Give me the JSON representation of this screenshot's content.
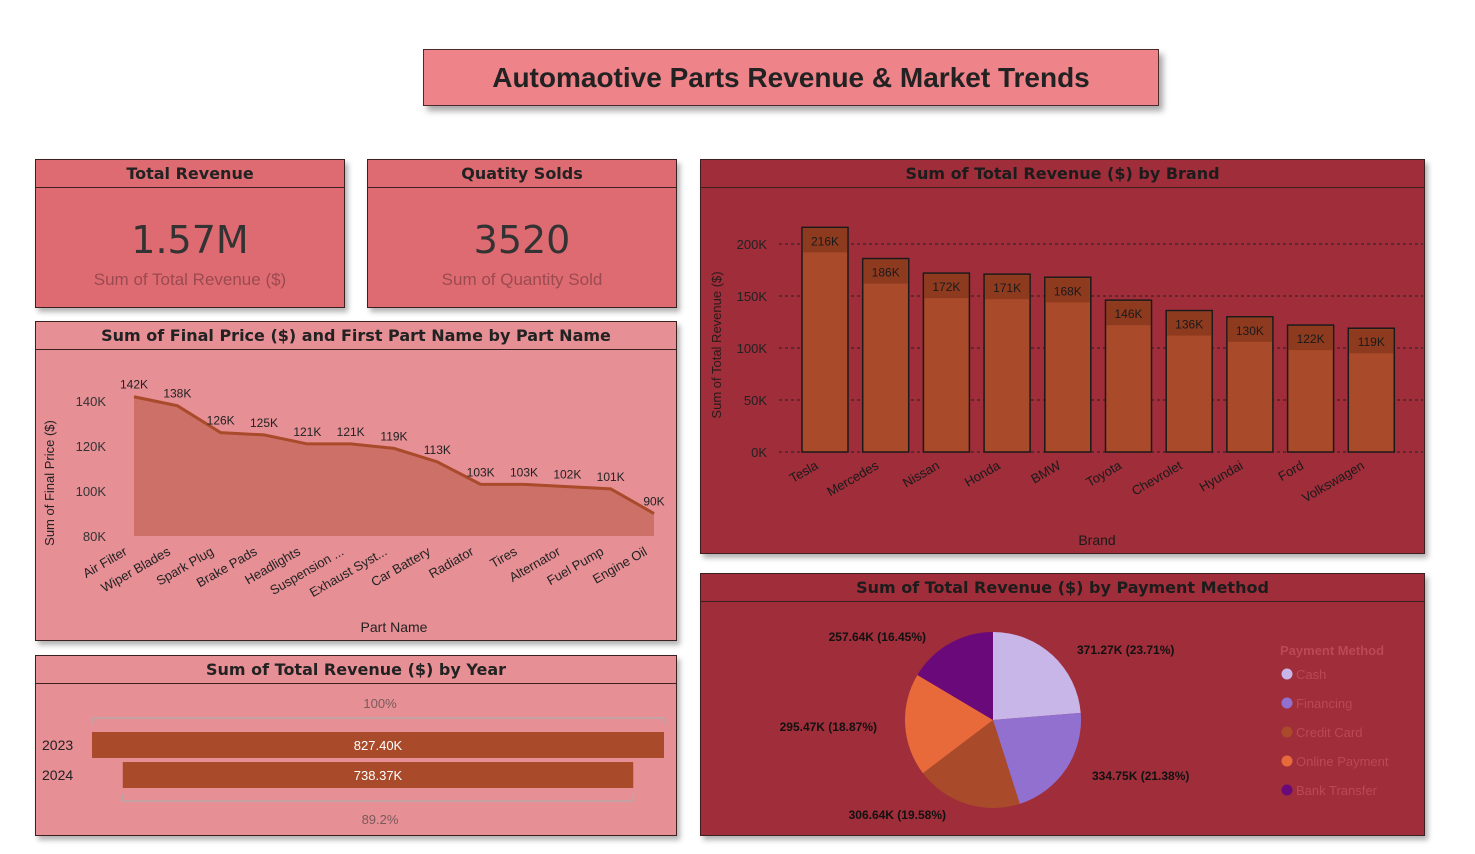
{
  "dashboard": {
    "title": "Automaotive Parts Revenue & Market Trends"
  },
  "kpis": {
    "revenue": {
      "title": "Total Revenue",
      "value": "1.57M",
      "label": "Sum of Total Revenue ($)"
    },
    "quantity": {
      "title": "Quatity Solds",
      "value": "3520",
      "label": "Sum of Quantity Sold"
    }
  },
  "colors": {
    "bar": "#a94a2a",
    "bar_top": "#8e3a1f",
    "area_fill": "#cc7068",
    "area_line": "#a94a2a",
    "pie": [
      "#c9b6e9",
      "#9170d0",
      "#a94a2a",
      "#e86a3a",
      "#6a0a7a"
    ]
  },
  "chart_data": [
    {
      "type": "area",
      "title": "Sum of Final Price ($) and First Part Name by Part Name",
      "xlabel": "Part Name",
      "ylabel": "Sum of Final Price ($)",
      "categories": [
        "Air Filter",
        "Wiper Blades",
        "Spark Plug",
        "Brake Pads",
        "Headlights",
        "Suspension ...",
        "Exhaust Syst...",
        "Car Battery",
        "Radiator",
        "Tires",
        "Alternator",
        "Fuel Pump",
        "Engine Oil"
      ],
      "values": [
        142000,
        138000,
        126000,
        125000,
        121000,
        121000,
        119000,
        113000,
        103000,
        103000,
        102000,
        101000,
        90000
      ],
      "data_labels": [
        "142K",
        "138K",
        "126K",
        "125K",
        "121K",
        "121K",
        "119K",
        "113K",
        "103K",
        "103K",
        "102K",
        "101K",
        "90K"
      ],
      "yticks": [
        80000,
        100000,
        120000,
        140000
      ],
      "ytick_labels": [
        "80K",
        "100K",
        "120K",
        "140K"
      ],
      "ylim": [
        80000,
        145000
      ]
    },
    {
      "type": "bar",
      "title": "Sum of Total Revenue ($) by Brand",
      "xlabel": "Brand",
      "ylabel": "Sum of Total Revenue ($)",
      "categories": [
        "Tesla",
        "Mercedes",
        "Nissan",
        "Honda",
        "BMW",
        "Toyota",
        "Chevrolet",
        "Hyundai",
        "Ford",
        "Volkswagen"
      ],
      "values": [
        216000,
        186000,
        172000,
        171000,
        168000,
        146000,
        136000,
        130000,
        122000,
        119000
      ],
      "data_labels": [
        "216K",
        "186K",
        "172K",
        "171K",
        "168K",
        "146K",
        "136K",
        "130K",
        "122K",
        "119K"
      ],
      "yticks": [
        0,
        50000,
        100000,
        150000,
        200000
      ],
      "ytick_labels": [
        "0K",
        "50K",
        "100K",
        "150K",
        "200K"
      ],
      "ylim": [
        0,
        225000
      ],
      "grid": true
    },
    {
      "type": "bar",
      "orientation": "horizontal",
      "title": "Sum of Total Revenue ($) by Year",
      "categories": [
        "2023",
        "2024"
      ],
      "values": [
        827400,
        738370
      ],
      "data_labels": [
        "827.40K",
        "738.37K"
      ],
      "top_percent_label": "100%",
      "bottom_percent_label": "89.2%"
    },
    {
      "type": "pie",
      "title": "Sum of Total Revenue ($) by Payment Method",
      "legend_title": "Payment Method",
      "legend_position": "right",
      "categories": [
        "Cash",
        "Financing",
        "Credit Card",
        "Online Payment",
        "Bank Transfer"
      ],
      "values": [
        371270,
        334750,
        306640,
        295470,
        257640
      ],
      "data_labels": [
        "371.27K (23.71%)",
        "334.75K (21.38%)",
        "306.64K (19.58%)",
        "295.47K (18.87%)",
        "257.64K (16.45%)"
      ]
    }
  ]
}
